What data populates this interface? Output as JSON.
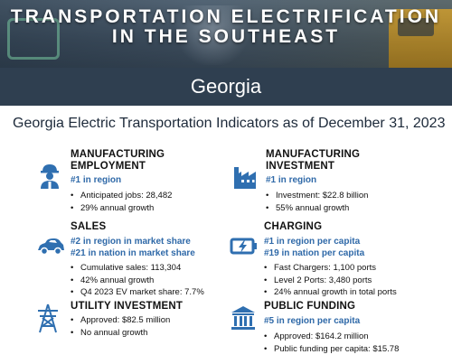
{
  "banner": {
    "title_line1": "TRANSPORTATION ELECTRIFICATION",
    "title_line2": "IN THE SOUTHEAST"
  },
  "state": "Georgia",
  "main_title": "Georgia Electric Transportation Indicators as of December 31, 2023",
  "colors": {
    "icon_blue": "#2f6fb0",
    "rank_blue": "#2f69a8",
    "state_bar": "#2f3f50"
  },
  "sections": {
    "manufacturing_employment": {
      "heading_line1": "MANUFACTURING",
      "heading_line2": "EMPLOYMENT",
      "icon": "worker-icon",
      "rank_line1": "#1 in region",
      "bullets": [
        "Anticipated jobs: 28,482",
        "29% annual growth"
      ]
    },
    "manufacturing_investment": {
      "heading_line1": "MANUFACTURING",
      "heading_line2": "INVESTMENT",
      "icon": "factory-icon",
      "rank_line1": "#1 in region",
      "bullets": [
        "Investment: $22.8 billion",
        "55% annual growth"
      ]
    },
    "sales": {
      "heading_line1": "SALES",
      "icon": "car-icon",
      "rank_line1": "#2 in region in market share",
      "rank_line2": "#21 in nation in market share",
      "bullets": [
        "Cumulative sales: 113,304",
        "42% annual growth",
        "Q4 2023 EV market share: 7.7%"
      ]
    },
    "charging": {
      "heading_line1": "CHARGING",
      "icon": "battery-charging-icon",
      "rank_line1": "#1 in region per capita",
      "rank_line2": "#19 in nation per capita",
      "bullets": [
        "Fast Chargers: 1,100 ports",
        "Level 2 Ports: 3,480 ports",
        "24% annual growth in total ports"
      ]
    },
    "utility_investment": {
      "heading_line1": "UTILITY INVESTMENT",
      "icon": "power-tower-icon",
      "bullets": [
        "Approved: $82.5 million",
        "No annual growth"
      ]
    },
    "public_funding": {
      "heading_line1": "PUBLIC FUNDING",
      "icon": "government-building-icon",
      "rank_line1": "#5 in region per capita",
      "bullets": [
        "Approved: $164.2 million",
        "Public funding per capita: $15.78"
      ]
    }
  }
}
